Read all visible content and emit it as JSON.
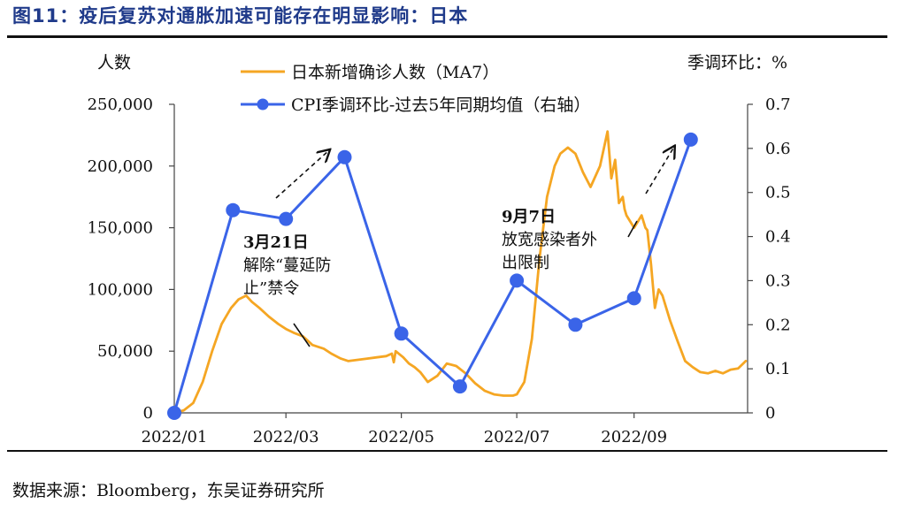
{
  "figure_title": "图11：疫后复苏对通胀加速可能存在明显影响：日本",
  "source": "数据来源：Bloomberg，东吴证券研究所",
  "colors": {
    "covid": "#f5a623",
    "cpi": "#3a64e8",
    "title": "#1f3a8a"
  },
  "chart_data": {
    "type": "line",
    "xlabel": "",
    "x_tick_labels": [
      "2022/01",
      "2022/03",
      "2022/05",
      "2022/07",
      "2022/09"
    ],
    "x_tick_dates": [
      "2022-01-01",
      "2022-03-01",
      "2022-05-01",
      "2022-07-01",
      "2022-09-01"
    ],
    "x_range": [
      "2022-01-01",
      "2022-10-31"
    ],
    "left_axis": {
      "label": "人数",
      "range": [
        0,
        250000
      ],
      "ticks": [
        0,
        50000,
        100000,
        150000,
        200000,
        250000
      ],
      "tick_labels": [
        "0",
        "50,000",
        "100,000",
        "150,000",
        "200,000",
        "250,000"
      ]
    },
    "right_axis": {
      "label": "季调环比：%",
      "range": [
        0,
        0.7
      ],
      "ticks": [
        0,
        0.1,
        0.2,
        0.3,
        0.4,
        0.5,
        0.6,
        0.7
      ],
      "tick_labels": [
        "0",
        "0.1",
        "0.2",
        "0.3",
        "0.4",
        "0.5",
        "0.6",
        "0.7"
      ]
    },
    "grid": false,
    "legend_position": "top-center",
    "series": [
      {
        "name": "日本新增确诊人数（MA7）",
        "axis": "left",
        "style": "line",
        "x": [
          "2022-01-01",
          "2022-01-06",
          "2022-01-11",
          "2022-01-16",
          "2022-01-21",
          "2022-01-26",
          "2022-01-31",
          "2022-02-04",
          "2022-02-08",
          "2022-02-11",
          "2022-02-15",
          "2022-02-20",
          "2022-02-25",
          "2022-03-01",
          "2022-03-05",
          "2022-03-10",
          "2022-03-15",
          "2022-03-21",
          "2022-03-25",
          "2022-03-30",
          "2022-04-03",
          "2022-04-08",
          "2022-04-13",
          "2022-04-18",
          "2022-04-23",
          "2022-04-26",
          "2022-04-27",
          "2022-04-28",
          "2022-05-02",
          "2022-05-05",
          "2022-05-08",
          "2022-05-11",
          "2022-05-15",
          "2022-05-20",
          "2022-05-25",
          "2022-05-30",
          "2022-06-04",
          "2022-06-09",
          "2022-06-14",
          "2022-06-19",
          "2022-06-24",
          "2022-06-29",
          "2022-07-01",
          "2022-07-05",
          "2022-07-09",
          "2022-07-13",
          "2022-07-17",
          "2022-07-21",
          "2022-07-24",
          "2022-07-28",
          "2022-08-01",
          "2022-08-05",
          "2022-08-09",
          "2022-08-14",
          "2022-08-18",
          "2022-08-20",
          "2022-08-22",
          "2022-08-24",
          "2022-08-26",
          "2022-08-27",
          "2022-08-28",
          "2022-08-30",
          "2022-09-01",
          "2022-09-03",
          "2022-09-05",
          "2022-09-07",
          "2022-09-08",
          "2022-09-10",
          "2022-09-12",
          "2022-09-14",
          "2022-09-16",
          "2022-09-20",
          "2022-09-24",
          "2022-09-28",
          "2022-10-02",
          "2022-10-06",
          "2022-10-10",
          "2022-10-14",
          "2022-10-18",
          "2022-10-22",
          "2022-10-26",
          "2022-10-30"
        ],
        "values": [
          400,
          2000,
          8000,
          25000,
          50000,
          72000,
          85000,
          92000,
          95000,
          90000,
          85000,
          78000,
          72000,
          68000,
          65000,
          62000,
          55000,
          52000,
          48000,
          44000,
          42000,
          43000,
          44000,
          45000,
          46000,
          48000,
          41000,
          50000,
          45000,
          40000,
          37000,
          33000,
          25000,
          30000,
          40000,
          38000,
          32000,
          24000,
          18000,
          15000,
          14000,
          14000,
          15000,
          25000,
          60000,
          125000,
          175000,
          200000,
          210000,
          215000,
          210000,
          195000,
          183000,
          200000,
          228000,
          190000,
          205000,
          170000,
          175000,
          165000,
          160000,
          155000,
          150000,
          155000,
          160000,
          150000,
          148000,
          120000,
          85000,
          100000,
          95000,
          75000,
          58000,
          42000,
          37000,
          33000,
          32000,
          34000,
          32000,
          35000,
          36000,
          42000
        ]
      },
      {
        "name": "CPI季调环比-过去5年同期均值（右轴）",
        "axis": "right",
        "style": "line-markers",
        "x": [
          "2022-01-01",
          "2022-02-01",
          "2022-03-01",
          "2022-04-01",
          "2022-05-01",
          "2022-06-01",
          "2022-07-01",
          "2022-08-01",
          "2022-09-01",
          "2022-10-01"
        ],
        "values": [
          0.0,
          0.46,
          0.44,
          0.58,
          0.18,
          0.06,
          0.3,
          0.2,
          0.26,
          0.62
        ]
      }
    ],
    "annotations": [
      {
        "id": "mar21",
        "date": "2022-03-21",
        "title": "3月21日",
        "lines": [
          "解除“蔓延防",
          "止”禁令"
        ]
      },
      {
        "id": "sep7",
        "date": "2022-09-07",
        "title": "9月7日",
        "lines": [
          "放宽感染者外",
          "出限制"
        ]
      }
    ]
  }
}
